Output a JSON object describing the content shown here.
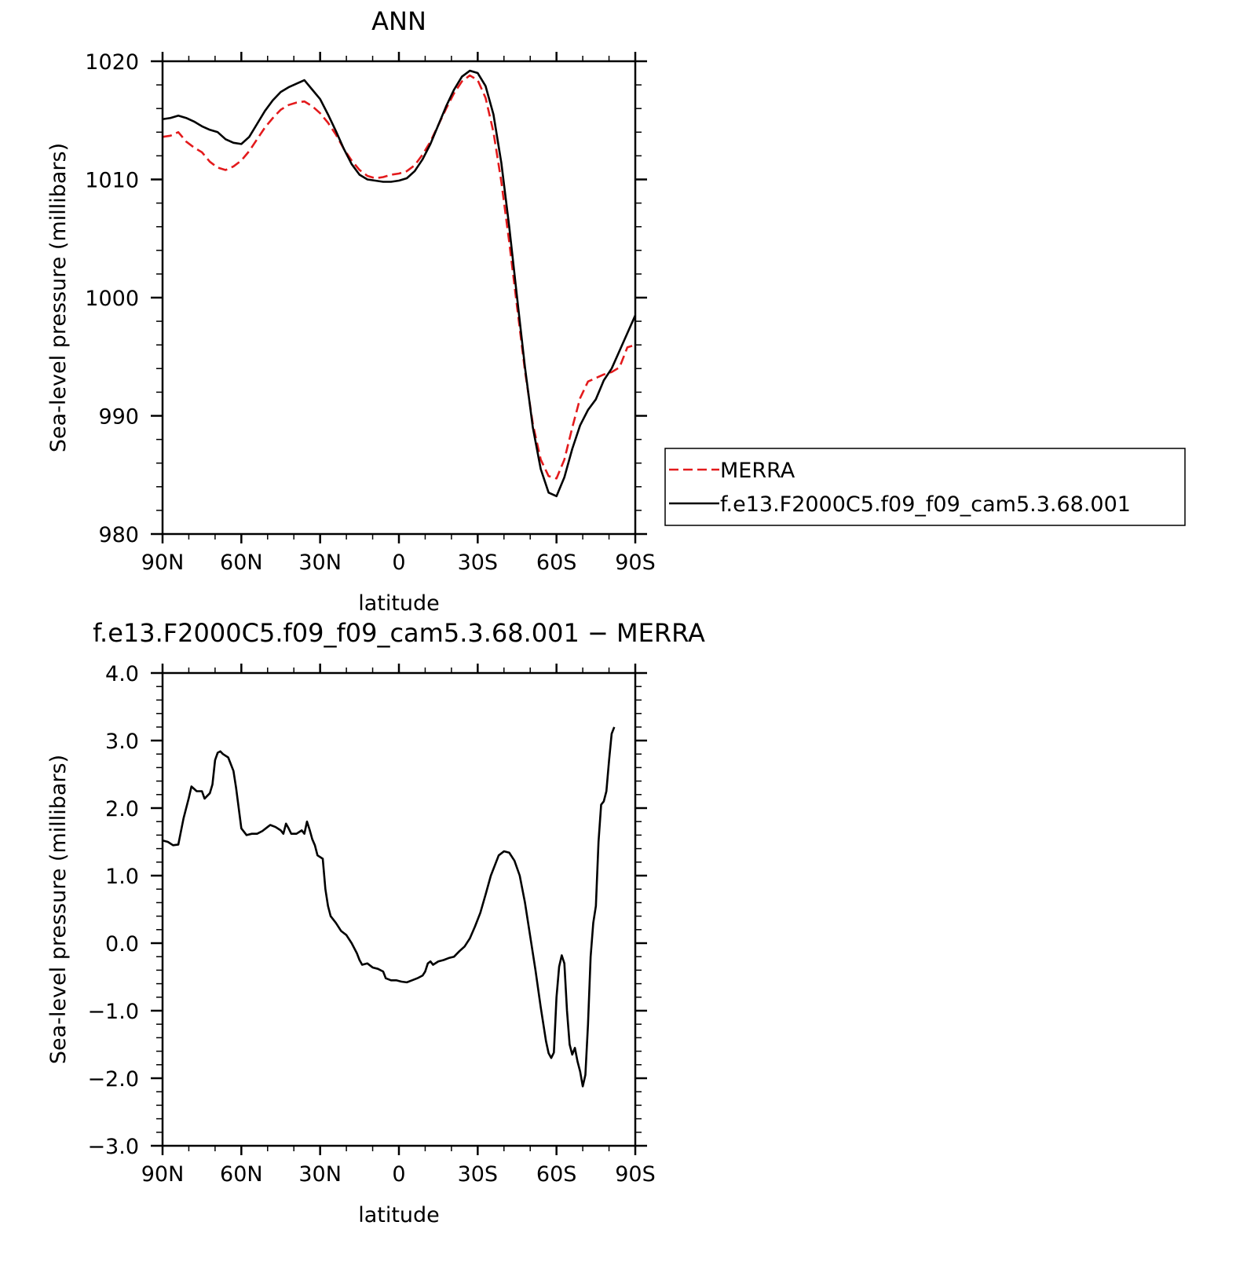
{
  "chart_data": [
    {
      "type": "line",
      "title": "ANN",
      "xlabel": "latitude",
      "ylabel": "Sea-level pressure (millibars)",
      "xlim": [
        90,
        -90
      ],
      "ylim": [
        980,
        1020
      ],
      "xticks": [
        90,
        60,
        30,
        0,
        -30,
        -60,
        -90
      ],
      "xtick_labels": [
        "90N",
        "60N",
        "30N",
        "0",
        "30S",
        "60S",
        "90S"
      ],
      "yticks": [
        980,
        990,
        1000,
        1010,
        1020
      ],
      "ytick_labels": [
        "980",
        "990",
        "1000",
        "1010",
        "1020"
      ],
      "legend_position": "right",
      "series": [
        {
          "name": "MERRA",
          "color": "#e31a1c",
          "style": "dashed",
          "points": [
            [
              90,
              1013.6
            ],
            [
              87,
              1013.7
            ],
            [
              84,
              1014.0
            ],
            [
              81,
              1013.2
            ],
            [
              78,
              1012.7
            ],
            [
              75,
              1012.3
            ],
            [
              72,
              1011.5
            ],
            [
              69,
              1011.0
            ],
            [
              66,
              1010.8
            ],
            [
              63,
              1011.1
            ],
            [
              60,
              1011.6
            ],
            [
              57,
              1012.4
            ],
            [
              54,
              1013.4
            ],
            [
              51,
              1014.4
            ],
            [
              48,
              1015.2
            ],
            [
              45,
              1015.9
            ],
            [
              42,
              1016.3
            ],
            [
              39,
              1016.5
            ],
            [
              36,
              1016.6
            ],
            [
              33,
              1016.2
            ],
            [
              30,
              1015.6
            ],
            [
              27,
              1014.8
            ],
            [
              24,
              1013.8
            ],
            [
              21,
              1012.6
            ],
            [
              18,
              1011.6
            ],
            [
              15,
              1010.8
            ],
            [
              12,
              1010.3
            ],
            [
              9,
              1010.1
            ],
            [
              6,
              1010.2
            ],
            [
              3,
              1010.4
            ],
            [
              0,
              1010.5
            ],
            [
              -3,
              1010.7
            ],
            [
              -6,
              1011.2
            ],
            [
              -9,
              1012.1
            ],
            [
              -12,
              1013.2
            ],
            [
              -15,
              1014.6
            ],
            [
              -18,
              1016.0
            ],
            [
              -21,
              1017.3
            ],
            [
              -24,
              1018.3
            ],
            [
              -27,
              1018.8
            ],
            [
              -30,
              1018.4
            ],
            [
              -33,
              1016.9
            ],
            [
              -36,
              1014.0
            ],
            [
              -39,
              1009.8
            ],
            [
              -42,
              1004.7
            ],
            [
              -45,
              999.2
            ],
            [
              -48,
              993.8
            ],
            [
              -51,
              989.3
            ],
            [
              -54,
              986.3
            ],
            [
              -57,
              984.9
            ],
            [
              -60,
              984.7
            ],
            [
              -63,
              986.3
            ],
            [
              -66,
              989.0
            ],
            [
              -69,
              991.5
            ],
            [
              -72,
              992.9
            ],
            [
              -75,
              993.2
            ],
            [
              -78,
              993.5
            ],
            [
              -81,
              993.7
            ],
            [
              -84,
              994.1
            ],
            [
              -87,
              995.8
            ],
            [
              -90,
              996.0
            ]
          ]
        },
        {
          "name": "f.e13.F2000C5.f09_f09_cam5.3.68.001",
          "color": "#000000",
          "style": "solid",
          "points": [
            [
              90,
              1015.1
            ],
            [
              87,
              1015.2
            ],
            [
              84,
              1015.4
            ],
            [
              81,
              1015.2
            ],
            [
              78,
              1014.9
            ],
            [
              75,
              1014.5
            ],
            [
              72,
              1014.2
            ],
            [
              69,
              1014.0
            ],
            [
              66,
              1013.4
            ],
            [
              63,
              1013.1
            ],
            [
              60,
              1013.0
            ],
            [
              57,
              1013.6
            ],
            [
              54,
              1014.7
            ],
            [
              51,
              1015.8
            ],
            [
              48,
              1016.7
            ],
            [
              45,
              1017.4
            ],
            [
              42,
              1017.8
            ],
            [
              39,
              1018.1
            ],
            [
              36,
              1018.4
            ],
            [
              33,
              1017.6
            ],
            [
              30,
              1016.8
            ],
            [
              27,
              1015.5
            ],
            [
              24,
              1014.1
            ],
            [
              21,
              1012.6
            ],
            [
              18,
              1011.3
            ],
            [
              15,
              1010.4
            ],
            [
              12,
              1010.0
            ],
            [
              9,
              1009.9
            ],
            [
              6,
              1009.8
            ],
            [
              3,
              1009.8
            ],
            [
              0,
              1009.9
            ],
            [
              -3,
              1010.1
            ],
            [
              -6,
              1010.7
            ],
            [
              -9,
              1011.7
            ],
            [
              -12,
              1013.0
            ],
            [
              -15,
              1014.6
            ],
            [
              -18,
              1016.2
            ],
            [
              -21,
              1017.6
            ],
            [
              -24,
              1018.7
            ],
            [
              -27,
              1019.2
            ],
            [
              -30,
              1019.0
            ],
            [
              -33,
              1017.9
            ],
            [
              -36,
              1015.5
            ],
            [
              -39,
              1011.4
            ],
            [
              -42,
              1006.0
            ],
            [
              -45,
              1000.0
            ],
            [
              -48,
              994.1
            ],
            [
              -51,
              989.0
            ],
            [
              -54,
              985.5
            ],
            [
              -57,
              983.5
            ],
            [
              -60,
              983.2
            ],
            [
              -63,
              984.8
            ],
            [
              -66,
              987.2
            ],
            [
              -69,
              989.2
            ],
            [
              -72,
              990.5
            ],
            [
              -75,
              991.4
            ],
            [
              -78,
              993.0
            ],
            [
              -81,
              994.0
            ],
            [
              -84,
              995.5
            ],
            [
              -87,
              997.0
            ],
            [
              -90,
              998.5
            ]
          ]
        }
      ]
    },
    {
      "type": "line",
      "title": "f.e13.F2000C5.f09_f09_cam5.3.68.001 − MERRA",
      "xlabel": "latitude",
      "ylabel": "Sea-level pressure (millibars)",
      "xlim": [
        90,
        -90
      ],
      "ylim": [
        -3,
        4
      ],
      "xticks": [
        90,
        60,
        30,
        0,
        -30,
        -60,
        -90
      ],
      "xtick_labels": [
        "90N",
        "60N",
        "30N",
        "0",
        "30S",
        "60S",
        "90S"
      ],
      "yticks": [
        -3,
        -2,
        -1,
        0,
        1,
        2,
        3,
        4
      ],
      "ytick_labels": [
        "−3.0",
        "−2.0",
        "−1.0",
        "0.0",
        "1.0",
        "2.0",
        "3.0",
        "4.0"
      ],
      "series": [
        {
          "color": "#000000",
          "style": "solid",
          "points": [
            [
              90,
              1.52
            ],
            [
              88,
              1.5
            ],
            [
              86,
              1.45
            ],
            [
              84,
              1.46
            ],
            [
              82,
              1.85
            ],
            [
              80,
              2.15
            ],
            [
              79,
              2.32
            ],
            [
              77,
              2.25
            ],
            [
              75,
              2.25
            ],
            [
              74,
              2.14
            ],
            [
              72,
              2.22
            ],
            [
              71,
              2.35
            ],
            [
              70,
              2.71
            ],
            [
              69,
              2.82
            ],
            [
              68,
              2.84
            ],
            [
              67,
              2.8
            ],
            [
              65,
              2.75
            ],
            [
              63,
              2.55
            ],
            [
              62,
              2.3
            ],
            [
              61,
              2.0
            ],
            [
              60,
              1.7
            ],
            [
              58,
              1.6
            ],
            [
              56,
              1.62
            ],
            [
              54,
              1.62
            ],
            [
              52,
              1.66
            ],
            [
              50,
              1.72
            ],
            [
              49,
              1.75
            ],
            [
              47,
              1.72
            ],
            [
              45,
              1.67
            ],
            [
              44,
              1.62
            ],
            [
              43,
              1.77
            ],
            [
              42,
              1.7
            ],
            [
              41,
              1.62
            ],
            [
              39,
              1.62
            ],
            [
              37,
              1.67
            ],
            [
              36,
              1.62
            ],
            [
              35,
              1.8
            ],
            [
              34,
              1.68
            ],
            [
              33,
              1.54
            ],
            [
              32,
              1.45
            ],
            [
              31,
              1.3
            ],
            [
              29,
              1.25
            ],
            [
              28,
              0.8
            ],
            [
              27,
              0.55
            ],
            [
              26,
              0.4
            ],
            [
              24,
              0.3
            ],
            [
              22,
              0.18
            ],
            [
              20,
              0.12
            ],
            [
              18,
              0.0
            ],
            [
              16,
              -0.15
            ],
            [
              15,
              -0.25
            ],
            [
              14,
              -0.32
            ],
            [
              12,
              -0.3
            ],
            [
              10,
              -0.36
            ],
            [
              8,
              -0.38
            ],
            [
              6,
              -0.42
            ],
            [
              5,
              -0.52
            ],
            [
              3,
              -0.55
            ],
            [
              1,
              -0.55
            ],
            [
              -1,
              -0.57
            ],
            [
              -3,
              -0.58
            ],
            [
              -5,
              -0.55
            ],
            [
              -7,
              -0.52
            ],
            [
              -9,
              -0.48
            ],
            [
              -10,
              -0.42
            ],
            [
              -11,
              -0.3
            ],
            [
              -12,
              -0.27
            ],
            [
              -13,
              -0.32
            ],
            [
              -15,
              -0.27
            ],
            [
              -17,
              -0.25
            ],
            [
              -19,
              -0.22
            ],
            [
              -21,
              -0.2
            ],
            [
              -23,
              -0.12
            ],
            [
              -25,
              -0.05
            ],
            [
              -27,
              0.07
            ],
            [
              -29,
              0.25
            ],
            [
              -31,
              0.45
            ],
            [
              -33,
              0.72
            ],
            [
              -35,
              1.0
            ],
            [
              -37,
              1.2
            ],
            [
              -38,
              1.3
            ],
            [
              -40,
              1.36
            ],
            [
              -42,
              1.34
            ],
            [
              -44,
              1.22
            ],
            [
              -46,
              1.0
            ],
            [
              -48,
              0.6
            ],
            [
              -50,
              0.1
            ],
            [
              -52,
              -0.4
            ],
            [
              -54,
              -0.95
            ],
            [
              -56,
              -1.45
            ],
            [
              -57,
              -1.63
            ],
            [
              -58,
              -1.7
            ],
            [
              -59,
              -1.62
            ],
            [
              -60,
              -0.8
            ],
            [
              -61,
              -0.35
            ],
            [
              -62,
              -0.18
            ],
            [
              -63,
              -0.3
            ],
            [
              -64,
              -1.0
            ],
            [
              -65,
              -1.5
            ],
            [
              -66,
              -1.65
            ],
            [
              -67,
              -1.55
            ],
            [
              -68,
              -1.75
            ],
            [
              -69,
              -1.9
            ],
            [
              -70,
              -2.12
            ],
            [
              -71,
              -1.95
            ],
            [
              -72,
              -1.2
            ],
            [
              -73,
              -0.2
            ],
            [
              -74,
              0.3
            ],
            [
              -75,
              0.55
            ],
            [
              -76,
              1.5
            ],
            [
              -77,
              2.05
            ],
            [
              -78,
              2.1
            ],
            [
              -79,
              2.25
            ],
            [
              -80,
              2.7
            ],
            [
              -81,
              3.1
            ],
            [
              -82,
              3.2
            ]
          ]
        }
      ]
    }
  ]
}
